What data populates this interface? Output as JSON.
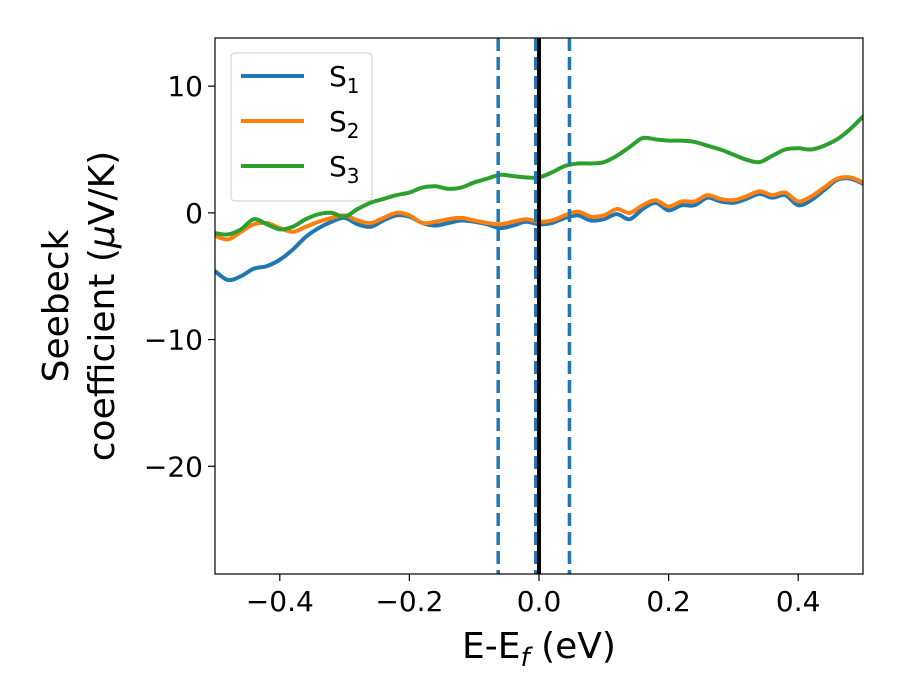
{
  "chart_data": {
    "type": "line",
    "xlabel": {
      "main": "E-E",
      "sub": "f",
      "unit": " (eV)"
    },
    "ylabel": {
      "line1": "Seebeck",
      "line2_pre": "coefficient  (",
      "mu": "μ",
      "line2_post": "V/K)"
    },
    "xlim": [
      -0.5,
      0.5
    ],
    "ylim": [
      -28.5,
      13.8
    ],
    "xticks": [
      -0.4,
      -0.2,
      0.0,
      0.2,
      0.4
    ],
    "xtick_labels": [
      "−0.4",
      "−0.2",
      "0.0",
      "0.2",
      "0.4"
    ],
    "yticks": [
      10,
      0,
      -10,
      -20
    ],
    "ytick_labels": [
      "10",
      "0",
      "−10",
      "−20"
    ],
    "grid": false,
    "legend_position": "top-left",
    "series": [
      {
        "name": "S",
        "sub": "1",
        "color": "#1f77b4",
        "x": [
          -0.5,
          -0.48,
          -0.46,
          -0.44,
          -0.42,
          -0.4,
          -0.38,
          -0.36,
          -0.34,
          -0.32,
          -0.3,
          -0.28,
          -0.26,
          -0.24,
          -0.22,
          -0.2,
          -0.18,
          -0.16,
          -0.14,
          -0.12,
          -0.1,
          -0.08,
          -0.06,
          -0.04,
          -0.02,
          0.0,
          0.02,
          0.04,
          0.06,
          0.08,
          0.1,
          0.12,
          0.14,
          0.16,
          0.18,
          0.2,
          0.22,
          0.24,
          0.26,
          0.28,
          0.3,
          0.32,
          0.34,
          0.36,
          0.38,
          0.4,
          0.42,
          0.44,
          0.46,
          0.48,
          0.5
        ],
        "y": [
          -4.6,
          -5.3,
          -5.0,
          -4.4,
          -4.2,
          -3.7,
          -2.9,
          -1.9,
          -1.2,
          -0.7,
          -0.4,
          -0.9,
          -1.1,
          -0.6,
          -0.2,
          -0.3,
          -0.8,
          -1.0,
          -0.8,
          -0.6,
          -0.7,
          -0.9,
          -1.2,
          -1.0,
          -0.7,
          -0.9,
          -0.8,
          -0.4,
          -0.2,
          -0.6,
          -0.5,
          -0.1,
          -0.5,
          0.3,
          0.8,
          0.2,
          0.6,
          0.6,
          1.2,
          0.9,
          0.8,
          1.1,
          1.5,
          1.2,
          1.4,
          0.6,
          1.0,
          1.8,
          2.6,
          2.7,
          2.3
        ]
      },
      {
        "name": "S",
        "sub": "2",
        "color": "#ff7f0e",
        "x": [
          -0.5,
          -0.48,
          -0.46,
          -0.44,
          -0.42,
          -0.4,
          -0.38,
          -0.36,
          -0.34,
          -0.32,
          -0.3,
          -0.28,
          -0.26,
          -0.24,
          -0.22,
          -0.2,
          -0.18,
          -0.16,
          -0.14,
          -0.12,
          -0.1,
          -0.08,
          -0.06,
          -0.04,
          -0.02,
          0.0,
          0.02,
          0.04,
          0.06,
          0.08,
          0.1,
          0.12,
          0.14,
          0.16,
          0.18,
          0.2,
          0.22,
          0.24,
          0.26,
          0.28,
          0.3,
          0.32,
          0.34,
          0.36,
          0.38,
          0.4,
          0.42,
          0.44,
          0.46,
          0.48,
          0.5
        ],
        "y": [
          -1.8,
          -2.1,
          -1.5,
          -0.9,
          -0.8,
          -1.2,
          -1.5,
          -1.1,
          -0.7,
          -0.4,
          -0.2,
          -0.6,
          -0.8,
          -0.4,
          0.0,
          -0.2,
          -0.8,
          -0.7,
          -0.5,
          -0.4,
          -0.6,
          -0.8,
          -0.9,
          -0.7,
          -0.5,
          -0.7,
          -0.6,
          -0.2,
          0.1,
          -0.3,
          -0.2,
          0.3,
          0.0,
          0.6,
          1.0,
          0.5,
          0.9,
          0.9,
          1.4,
          1.1,
          1.0,
          1.3,
          1.7,
          1.4,
          1.6,
          0.9,
          1.3,
          2.0,
          2.7,
          2.8,
          2.4
        ]
      },
      {
        "name": "S",
        "sub": "3",
        "color": "#2ca02c",
        "x": [
          -0.5,
          -0.48,
          -0.46,
          -0.44,
          -0.42,
          -0.4,
          -0.38,
          -0.36,
          -0.34,
          -0.32,
          -0.3,
          -0.28,
          -0.26,
          -0.24,
          -0.22,
          -0.2,
          -0.18,
          -0.16,
          -0.14,
          -0.12,
          -0.1,
          -0.08,
          -0.06,
          -0.04,
          -0.02,
          0.0,
          0.02,
          0.04,
          0.06,
          0.08,
          0.1,
          0.12,
          0.14,
          0.16,
          0.18,
          0.2,
          0.22,
          0.24,
          0.26,
          0.28,
          0.3,
          0.32,
          0.34,
          0.36,
          0.38,
          0.4,
          0.42,
          0.44,
          0.46,
          0.48,
          0.5
        ],
        "y": [
          -1.6,
          -1.7,
          -1.3,
          -0.5,
          -0.9,
          -1.3,
          -1.1,
          -0.5,
          -0.1,
          0.0,
          -0.3,
          0.3,
          0.8,
          1.1,
          1.4,
          1.6,
          2.0,
          2.1,
          1.9,
          2.0,
          2.4,
          2.7,
          3.0,
          2.9,
          2.8,
          2.8,
          3.2,
          3.7,
          3.9,
          3.9,
          4.0,
          4.5,
          5.2,
          5.9,
          5.8,
          5.7,
          5.7,
          5.6,
          5.3,
          5.0,
          4.6,
          4.2,
          4.0,
          4.5,
          5.0,
          5.1,
          5.0,
          5.3,
          5.8,
          6.6,
          7.6
        ]
      }
    ],
    "vlines": [
      {
        "x": -0.063,
        "style": "dashed",
        "color": "#1f77b4"
      },
      {
        "x": -0.005,
        "style": "dashed",
        "color": "#1f77b4"
      },
      {
        "x": 0.047,
        "style": "dashed",
        "color": "#1f77b4"
      },
      {
        "x": 0.0,
        "style": "solid",
        "color": "#000000"
      }
    ]
  }
}
